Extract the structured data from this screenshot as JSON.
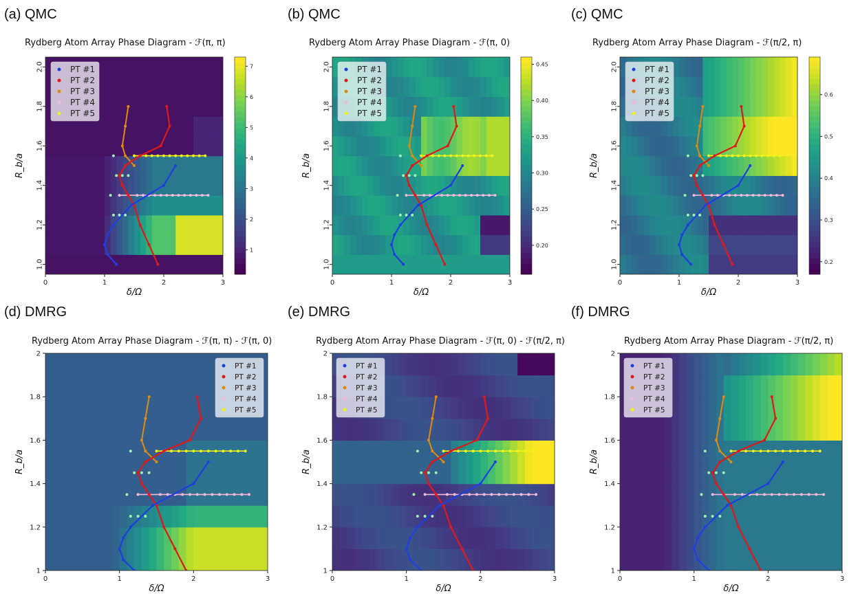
{
  "figure": {
    "panels": [
      {
        "label": "(a) QMC",
        "title": "Rydberg Atom Array Phase Diagram - ℱ(π, π)"
      },
      {
        "label": "(b) QMC",
        "title": "Rydberg Atom Array Phase Diagram - ℱ(π, 0)"
      },
      {
        "label": "(c) QMC",
        "title": "Rydberg Atom Array Phase Diagram - ℱ(π/2, π)"
      },
      {
        "label": "(d) DMRG",
        "title": "Rydberg Atom Array Phase Diagram - ℱ(π, π) - ℱ(π, 0)"
      },
      {
        "label": "(e) DMRG",
        "title": "Rydberg Atom Array Phase Diagram - ℱ(π, 0) - ℱ(π/2, π)"
      },
      {
        "label": "(f) DMRG",
        "title": "Rydberg Atom Array Phase Diagram - ℱ(π/2, π)"
      }
    ]
  },
  "colors": {
    "pt1": "#1f3fe0",
    "pt2": "#e01818",
    "pt3": "#e08a10",
    "pt4": "#f2b8d8",
    "pt5": "#f2f21a"
  },
  "chart_data": [
    {
      "type": "heatmap",
      "title": "Rydberg Atom Array Phase Diagram - ℱ(π, π)",
      "xlabel": "δ/Ω",
      "ylabel": "R_b/a",
      "xlim": [
        0,
        3
      ],
      "ylim": [
        0.95,
        2.05
      ],
      "xticks": [
        "0",
        "1",
        "2",
        "3"
      ],
      "yticks": [
        "1.0",
        "1.2",
        "1.4",
        "1.6",
        "1.8",
        "2.0"
      ],
      "colorbar": {
        "range": [
          0.2,
          7.3
        ],
        "ticks": [
          "1",
          "2",
          "3",
          "4",
          "5",
          "6",
          "7"
        ]
      },
      "field": "qmc_a",
      "legend": [
        "PT #1",
        "PT #2",
        "PT #3",
        "PT #4",
        "PT #5"
      ]
    },
    {
      "type": "heatmap",
      "title": "Rydberg Atom Array Phase Diagram - ℱ(π, 0)",
      "xlabel": "δ/Ω",
      "ylabel": "R_b/a",
      "xlim": [
        0,
        3
      ],
      "ylim": [
        0.95,
        2.05
      ],
      "xticks": [
        "0",
        "1",
        "2",
        "3"
      ],
      "yticks": [
        "1.0",
        "1.2",
        "1.4",
        "1.6",
        "1.8",
        "2.0"
      ],
      "colorbar": {
        "range": [
          0.16,
          0.46
        ],
        "ticks": [
          "0.20",
          "0.25",
          "0.30",
          "0.35",
          "0.40",
          "0.45"
        ]
      },
      "field": "qmc_b",
      "legend": [
        "PT #1",
        "PT #2",
        "PT #3",
        "PT #4",
        "PT #5"
      ]
    },
    {
      "type": "heatmap",
      "title": "Rydberg Atom Array Phase Diagram - ℱ(π/2, π)",
      "xlabel": "δ/Ω",
      "ylabel": "R_b/a",
      "xlim": [
        0,
        3
      ],
      "ylim": [
        0.95,
        2.05
      ],
      "xticks": [
        "0",
        "1",
        "2",
        "3"
      ],
      "yticks": [
        "1.0",
        "1.2",
        "1.4",
        "1.6",
        "1.8",
        "2.0"
      ],
      "colorbar": {
        "range": [
          0.17,
          0.69
        ],
        "ticks": [
          "0.2",
          "0.3",
          "0.4",
          "0.5",
          "0.6"
        ]
      },
      "field": "qmc_c",
      "legend": [
        "PT #1",
        "PT #2",
        "PT #3",
        "PT #4",
        "PT #5"
      ]
    },
    {
      "type": "heatmap",
      "title": "Rydberg Atom Array Phase Diagram - ℱ(π, π) - ℱ(π, 0)",
      "xlabel": "δ/Ω",
      "ylabel": "R_b/a",
      "xlim": [
        0,
        3
      ],
      "ylim": [
        1,
        2
      ],
      "xticks": [
        "0",
        "1",
        "2",
        "3"
      ],
      "yticks": [
        "1",
        "1.2",
        "1.4",
        "1.6",
        "1.8",
        "2"
      ],
      "field": "dmrg_d",
      "legend": [
        "PT #1",
        "PT #2",
        "PT #3",
        "PT #4",
        "PT #5"
      ]
    },
    {
      "type": "heatmap",
      "title": "Rydberg Atom Array Phase Diagram - ℱ(π, 0) - ℱ(π/2, π)",
      "xlabel": "δ/Ω",
      "ylabel": "R_b/a",
      "xlim": [
        0,
        3
      ],
      "ylim": [
        1,
        2
      ],
      "xticks": [
        "0",
        "1",
        "2",
        "3"
      ],
      "yticks": [
        "1",
        "1.2",
        "1.4",
        "1.6",
        "1.8",
        "2"
      ],
      "field": "dmrg_e",
      "legend": [
        "PT #1",
        "PT #2",
        "PT #3",
        "PT #4",
        "PT #5"
      ]
    },
    {
      "type": "heatmap",
      "title": "Rydberg Atom Array Phase Diagram - ℱ(π/2, π)",
      "xlabel": "δ/Ω",
      "ylabel": "R_b/a",
      "xlim": [
        0,
        3
      ],
      "ylim": [
        1,
        2
      ],
      "xticks": [
        "0",
        "1",
        "2",
        "3"
      ],
      "yticks": [
        "1",
        "1.2",
        "1.4",
        "1.6",
        "1.8",
        "2"
      ],
      "field": "dmrg_f",
      "legend": [
        "PT #1",
        "PT #2",
        "PT #3",
        "PT #4",
        "PT #5"
      ]
    }
  ],
  "overlays": {
    "pt1": {
      "x": [
        1.2,
        1.05,
        1.0,
        1.05,
        1.15,
        1.45,
        2.0,
        2.2
      ],
      "y": [
        1.0,
        1.05,
        1.1,
        1.15,
        1.2,
        1.3,
        1.4,
        1.5
      ]
    },
    "pt2": {
      "x": [
        1.9,
        1.75,
        1.6,
        1.5,
        1.4,
        1.3,
        1.25,
        1.35,
        1.6,
        1.95,
        2.1,
        2.05
      ],
      "y": [
        1.0,
        1.1,
        1.2,
        1.3,
        1.35,
        1.4,
        1.45,
        1.5,
        1.55,
        1.6,
        1.7,
        1.8
      ]
    },
    "pt3": {
      "x": [
        1.5,
        1.35,
        1.3,
        1.35,
        1.4
      ],
      "y": [
        1.5,
        1.55,
        1.6,
        1.7,
        1.8
      ]
    },
    "pt4": {
      "x": [
        1.25,
        1.4,
        1.55,
        1.65,
        1.75,
        1.85,
        1.95,
        2.05,
        2.15,
        2.25,
        2.35,
        2.45,
        2.55,
        2.65,
        2.75
      ],
      "y": [
        1.35,
        1.35,
        1.35,
        1.35,
        1.35,
        1.35,
        1.35,
        1.35,
        1.35,
        1.35,
        1.35,
        1.35,
        1.35,
        1.35,
        1.35
      ]
    },
    "pt5": {
      "x": [
        1.5,
        1.6,
        1.7,
        1.8,
        1.9,
        2.0,
        2.1,
        2.2,
        2.3,
        2.4,
        2.5,
        2.6,
        2.7
      ],
      "y": [
        1.55,
        1.55,
        1.55,
        1.55,
        1.55,
        1.55,
        1.55,
        1.55,
        1.55,
        1.55,
        1.55,
        1.55,
        1.55
      ]
    },
    "scatter_dots": {
      "x": [
        1.15,
        1.2,
        1.3,
        1.4,
        1.1,
        1.15,
        1.25,
        1.35
      ],
      "y": [
        1.55,
        1.45,
        1.45,
        1.45,
        1.35,
        1.25,
        1.25,
        1.25
      ]
    }
  }
}
